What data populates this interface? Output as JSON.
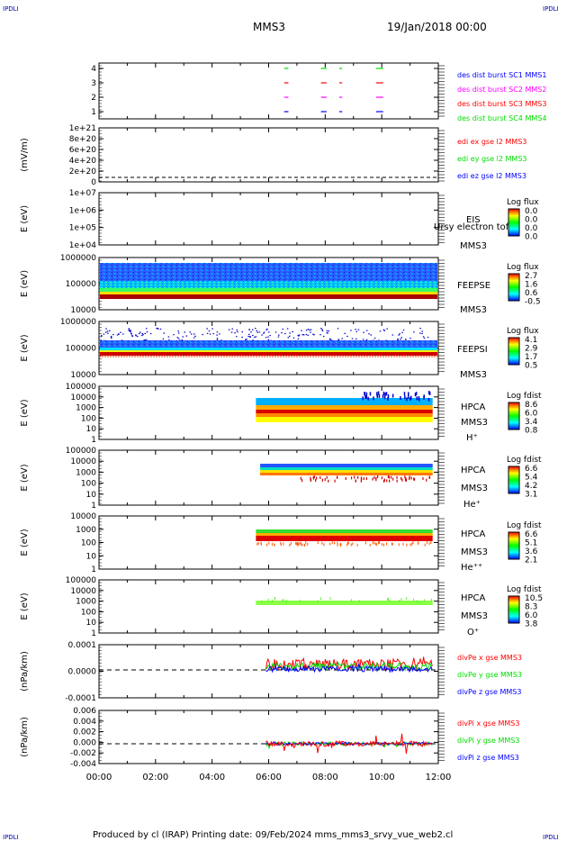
{
  "header": {
    "corner_left_top": "IPDLI",
    "corner_right_top": "IPDLI",
    "corner_left_bottom": "IPDLI",
    "corner_right_bottom": "IPDLI",
    "title": "MMS3",
    "date": "19/Jan/2018 00:00"
  },
  "footer": {
    "text": "Produced by cl (IRAP)   Printing date: 09/Feb/2024   mms_mms3_srvy_vue_web2.cl"
  },
  "colors": {
    "blue": "#0000ff",
    "magenta": "#ff00ff",
    "red": "#ff0000",
    "green": "#00dd00",
    "spec_dark_red": "#aa0000",
    "spec_cyan": "#00c8ff",
    "spec_yellow": "#ffff00",
    "frame": "#000000"
  },
  "chart_data": {
    "type": "multi-panel time series",
    "x_axis": {
      "ticks": [
        "00:00",
        "02:00",
        "04:00",
        "06:00",
        "08:00",
        "10:00",
        "12:00"
      ],
      "range_hours": [
        0,
        12
      ]
    },
    "panels": [
      {
        "id": "burst",
        "type": "scatter",
        "ylabel": "",
        "yticks": [
          "4",
          "3",
          "2",
          "1"
        ],
        "legend": [
          {
            "text": "des dist burst SC1 MMS1",
            "color": "#0000ff"
          },
          {
            "text": "des dist burst SC2 MMS2",
            "color": "#ff00ff"
          },
          {
            "text": "des dist burst SC3 MMS3",
            "color": "#ff0000"
          },
          {
            "text": "des dist burst SC4 MMS4",
            "color": "#00dd00"
          }
        ],
        "segments_hours": [
          [
            6.55,
            6.7
          ],
          [
            7.85,
            8.05
          ],
          [
            8.5,
            8.6
          ],
          [
            9.8,
            10.05
          ]
        ]
      },
      {
        "id": "edi",
        "type": "line",
        "ylabel": "(mV/m)",
        "yticks": [
          "1e+21",
          "8e+20",
          "6e+20",
          "4e+20",
          "2e+20",
          "0"
        ],
        "legend": [
          {
            "text": "edi ex gse l2 MMS3",
            "color": "#ff0000"
          },
          {
            "text": "edi ey gse l2 MMS3",
            "color": "#00dd00"
          },
          {
            "text": "edi ez gse l2 MMS3",
            "color": "#0000ff"
          }
        ]
      },
      {
        "id": "eis",
        "type": "heatmap",
        "ylabel": "E (eV)",
        "yticks": [
          "1e+07",
          "1e+06",
          "1e+05",
          "1e+04"
        ],
        "labels": [
          "EIS",
          "MMS3"
        ],
        "overlay": "Ursy electron tof",
        "colorbar": {
          "title": "Log flux",
          "ticks": [
            "0.0",
            "0.0",
            "0.0",
            "0.0"
          ]
        }
      },
      {
        "id": "feepse",
        "type": "heatmap",
        "ylabel": "E (eV)",
        "yticks": [
          "1000000",
          "100000",
          "10000"
        ],
        "labels": [
          "FEEPSE",
          "MMS3"
        ],
        "colorbar": {
          "title": "Log flux",
          "ticks": [
            "2.7",
            "1.6",
            "0.6",
            "-0.5"
          ]
        }
      },
      {
        "id": "feepsi",
        "type": "heatmap",
        "ylabel": "E (eV)",
        "yticks": [
          "1000000",
          "100000",
          "10000"
        ],
        "labels": [
          "FEEPSI",
          "MMS3"
        ],
        "colorbar": {
          "title": "Log flux",
          "ticks": [
            "4.1",
            "2.9",
            "1.7",
            "0.5"
          ]
        }
      },
      {
        "id": "hpca_h",
        "type": "heatmap",
        "ylabel": "E (eV)",
        "yticks": [
          "100000",
          "10000",
          "1000",
          "100",
          "10",
          "1"
        ],
        "labels": [
          "HPCA",
          "MMS3",
          "H⁺"
        ],
        "colorbar": {
          "title": "Log fdist",
          "ticks": [
            "8.6",
            "6.0",
            "3.4",
            "0.8"
          ]
        }
      },
      {
        "id": "hpca_he",
        "type": "heatmap",
        "ylabel": "E (eV)",
        "yticks": [
          "100000",
          "10000",
          "1000",
          "100",
          "10",
          "1"
        ],
        "labels": [
          "HPCA",
          "MMS3",
          "He⁺"
        ],
        "colorbar": {
          "title": "Log fdist",
          "ticks": [
            "6.6",
            "5.4",
            "4.2",
            "3.1"
          ]
        }
      },
      {
        "id": "hpca_he2",
        "type": "heatmap",
        "ylabel": "E (eV)",
        "yticks": [
          "10000",
          "1000",
          "100",
          "10",
          "1"
        ],
        "labels": [
          "HPCA",
          "MMS3",
          "He⁺⁺"
        ],
        "colorbar": {
          "title": "Log fdist",
          "ticks": [
            "6.6",
            "5.1",
            "3.6",
            "2.1"
          ]
        }
      },
      {
        "id": "hpca_o",
        "type": "heatmap",
        "ylabel": "E (eV)",
        "yticks": [
          "100000",
          "10000",
          "1000",
          "100",
          "10",
          "1"
        ],
        "labels": [
          "HPCA",
          "MMS3",
          "O⁺"
        ],
        "colorbar": {
          "title": "Log fdist",
          "ticks": [
            "10.5",
            "8.3",
            "6.0",
            "3.8"
          ]
        }
      },
      {
        "id": "divpe",
        "type": "line",
        "ylabel": "(nPa/km)",
        "yticks": [
          "0.0001",
          "0.0000",
          "-0.0001"
        ],
        "legend": [
          {
            "text": "divPe x gse MMS3",
            "color": "#ff0000"
          },
          {
            "text": "divPe y gse MMS3",
            "color": "#00dd00"
          },
          {
            "text": "divPe z gse MMS3",
            "color": "#0000ff"
          }
        ]
      },
      {
        "id": "divpi",
        "type": "line",
        "ylabel": "(nPa/km)",
        "yticks": [
          "0.006",
          "0.004",
          "0.002",
          "0.000",
          "-0.002",
          "-0.004"
        ],
        "legend": [
          {
            "text": "divPi x gse MMS3",
            "color": "#ff0000"
          },
          {
            "text": "divPi y gse MMS3",
            "color": "#00dd00"
          },
          {
            "text": "divPi z gse MMS3",
            "color": "#0000ff"
          }
        ]
      }
    ]
  }
}
